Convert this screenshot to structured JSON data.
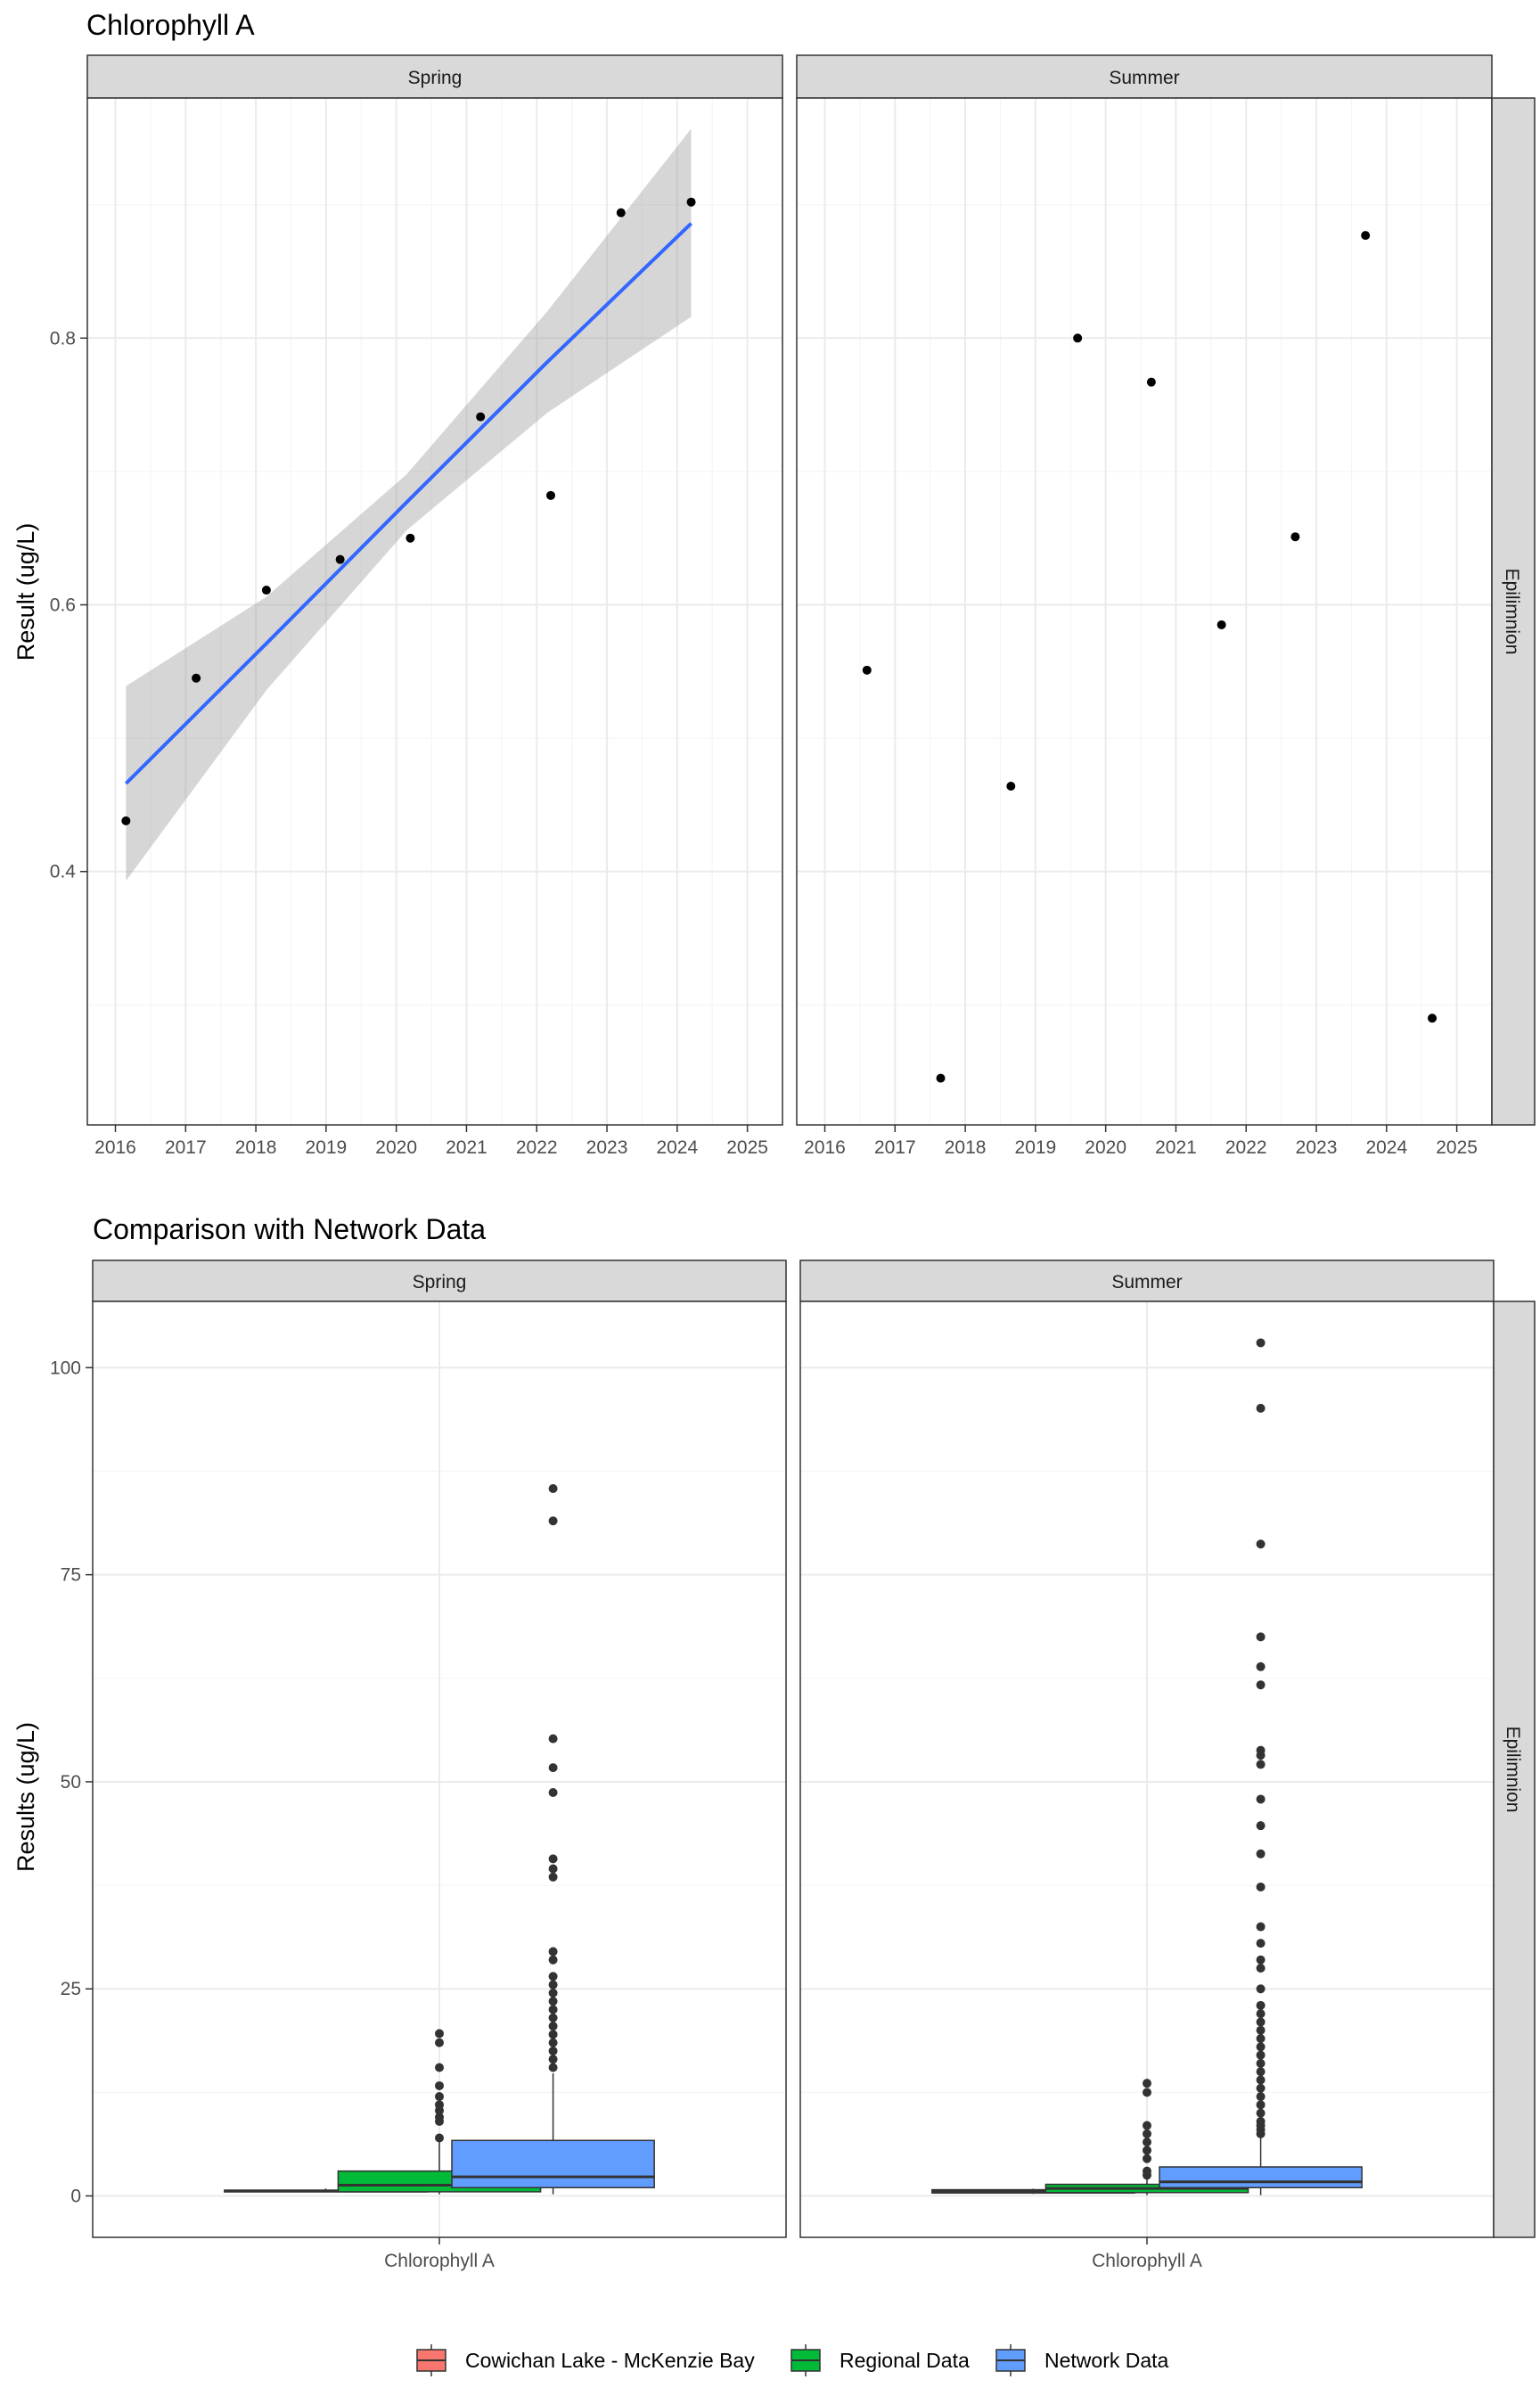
{
  "chart_data": [
    {
      "type": "scatter",
      "title": "Chlorophyll A",
      "xlabel": "",
      "ylabel": "Result (ug/L)",
      "facet_columns": [
        "Spring",
        "Summer"
      ],
      "facet_row": "Epilimnion",
      "x_ticks": [
        "2016",
        "2017",
        "2018",
        "2019",
        "2020",
        "2021",
        "2022",
        "2023",
        "2024",
        "2025"
      ],
      "y_ticks": [
        "0.4",
        "0.6",
        "0.8"
      ],
      "xlim": [
        2015.6,
        2025.5
      ],
      "ylim": [
        0.21,
        0.98
      ],
      "grid": true,
      "panels": [
        {
          "facet": "Spring",
          "points": [
            {
              "x": 2016.15,
              "y": 0.438
            },
            {
              "x": 2017.15,
              "y": 0.545
            },
            {
              "x": 2018.15,
              "y": 0.611
            },
            {
              "x": 2019.2,
              "y": 0.634
            },
            {
              "x": 2020.2,
              "y": 0.65
            },
            {
              "x": 2021.2,
              "y": 0.741
            },
            {
              "x": 2022.2,
              "y": 0.682
            },
            {
              "x": 2023.2,
              "y": 0.894
            },
            {
              "x": 2024.2,
              "y": 0.902
            }
          ],
          "trend": {
            "method": "linear fit with confidence band",
            "color": "#3366ff",
            "band_color": "#999999",
            "x": [
              2016.15,
              2018.15,
              2020.15,
              2022.15,
              2024.2
            ],
            "y": [
              0.466,
              0.571,
              0.677,
              0.782,
              0.886
            ],
            "lower": [
              0.393,
              0.536,
              0.656,
              0.744,
              0.816
            ],
            "upper": [
              0.539,
              0.606,
              0.698,
              0.82,
              0.957
            ]
          }
        },
        {
          "facet": "Summer",
          "points": [
            {
              "x": 2016.6,
              "y": 0.551
            },
            {
              "x": 2017.65,
              "y": 0.245
            },
            {
              "x": 2018.65,
              "y": 0.464
            },
            {
              "x": 2019.6,
              "y": 0.8
            },
            {
              "x": 2020.65,
              "y": 0.767
            },
            {
              "x": 2021.65,
              "y": 0.585
            },
            {
              "x": 2022.7,
              "y": 0.651
            },
            {
              "x": 2023.7,
              "y": 0.877
            },
            {
              "x": 2024.65,
              "y": 0.29
            }
          ]
        }
      ]
    },
    {
      "type": "box",
      "title": "Comparison with Network Data",
      "xlabel": "",
      "ylabel": "Results (ug/L)",
      "category": "Chlorophyll A",
      "facet_columns": [
        "Spring",
        "Summer"
      ],
      "facet_row": "Epilimnion",
      "y_ticks": [
        "0",
        "25",
        "50",
        "75",
        "100"
      ],
      "ylim": [
        -5,
        108
      ],
      "grid": true,
      "legend_position": "bottom",
      "legend": [
        {
          "name": "Cowichan Lake - McKenzie Bay",
          "color": "#f8766d"
        },
        {
          "name": "Regional Data",
          "color": "#00ba38"
        },
        {
          "name": "Network Data",
          "color": "#619cff"
        }
      ],
      "panels": [
        {
          "facet": "Spring",
          "boxes": [
            {
              "group": "Cowichan Lake - McKenzie Bay",
              "q1": 0.5,
              "median": 0.6,
              "q3": 0.7,
              "whisker_low": 0.44,
              "whisker_high": 0.9,
              "outliers": []
            },
            {
              "group": "Regional Data",
              "q1": 0.5,
              "median": 1.3,
              "q3": 3.0,
              "whisker_low": 0.2,
              "whisker_high": 6.5,
              "outliers": [
                7,
                9,
                9.5,
                10.3,
                11,
                12,
                13.3,
                15.5,
                18.5,
                19.6
              ]
            },
            {
              "group": "Network Data",
              "q1": 1.0,
              "median": 2.3,
              "q3": 6.7,
              "whisker_low": 0.2,
              "whisker_high": 14.8,
              "outliers": [
                15.5,
                16.5,
                17.5,
                18.5,
                19.5,
                20.5,
                21.5,
                22.5,
                23.5,
                24.5,
                25.5,
                26.5,
                28.5,
                29.5,
                38.5,
                39.5,
                40.7,
                48.7,
                51.7,
                55.2,
                81.5,
                85.4
              ]
            }
          ]
        },
        {
          "facet": "Summer",
          "boxes": [
            {
              "group": "Cowichan Lake - McKenzie Bay",
              "q1": 0.35,
              "median": 0.6,
              "q3": 0.75,
              "whisker_low": 0.24,
              "whisker_high": 0.88,
              "outliers": []
            },
            {
              "group": "Regional Data",
              "q1": 0.4,
              "median": 0.9,
              "q3": 1.4,
              "whisker_low": 0.1,
              "whisker_high": 2.2,
              "outliers": [
                2.5,
                3,
                4.5,
                5.5,
                6.5,
                7.5,
                8.5,
                12.5,
                13.6
              ]
            },
            {
              "group": "Network Data",
              "q1": 1.0,
              "median": 1.7,
              "q3": 3.5,
              "whisker_low": 0.1,
              "whisker_high": 7.0,
              "outliers": [
                7.5,
                8,
                8.5,
                9,
                10,
                11,
                12,
                13,
                14,
                15,
                16,
                17,
                18,
                19,
                20,
                21,
                22,
                23,
                25,
                27.5,
                28.5,
                30.5,
                32.5,
                37.3,
                41.3,
                44.7,
                47.9,
                52.1,
                53.2,
                53.8,
                61.7,
                63.9,
                67.5,
                78.7,
                95.1,
                103
              ]
            }
          ]
        }
      ]
    }
  ]
}
